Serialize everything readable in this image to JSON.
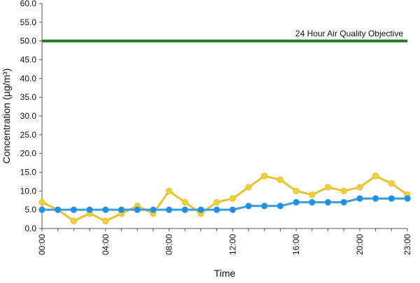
{
  "chart_data": {
    "type": "line",
    "title": "",
    "xlabel": "Time",
    "ylabel": "Concentration (µg/m³)",
    "ylim": [
      0,
      60
    ],
    "y_ticks": [
      "0.0",
      "5.0",
      "10.0",
      "15.0",
      "20.0",
      "25.0",
      "30.0",
      "35.0",
      "40.0",
      "45.0",
      "50.0",
      "55.0",
      "60.0"
    ],
    "x": [
      "00:00",
      "01:00",
      "02:00",
      "03:00",
      "04:00",
      "05:00",
      "06:00",
      "07:00",
      "08:00",
      "09:00",
      "10:00",
      "11:00",
      "12:00",
      "13:00",
      "14:00",
      "15:00",
      "16:00",
      "17:00",
      "18:00",
      "19:00",
      "20:00",
      "21:00",
      "22:00",
      "23:00"
    ],
    "x_tick_labels": [
      "00:00",
      "04:00",
      "08:00",
      "12:00",
      "16:00",
      "20:00",
      "23:00"
    ],
    "grid": false,
    "legend": "none",
    "series": [
      {
        "color": "#e8c230",
        "marker_color": "#f0cf3c",
        "values": [
          7,
          5,
          2,
          4,
          2,
          4,
          6,
          4,
          10,
          7,
          4,
          7,
          8,
          11,
          14,
          13,
          10,
          9,
          11,
          10,
          11,
          14,
          12,
          9
        ]
      },
      {
        "color": "#3a9de0",
        "marker_color": "#1f8fe6",
        "values": [
          5,
          5,
          5,
          5,
          5,
          5,
          5,
          5,
          5,
          5,
          5,
          5,
          5,
          6,
          6,
          6,
          7,
          7,
          7,
          7,
          8,
          8,
          8,
          8
        ]
      }
    ],
    "reference_line": {
      "value": 50,
      "label": "24 Hour Air Quality Objective",
      "color": "#1e7b1e"
    }
  }
}
